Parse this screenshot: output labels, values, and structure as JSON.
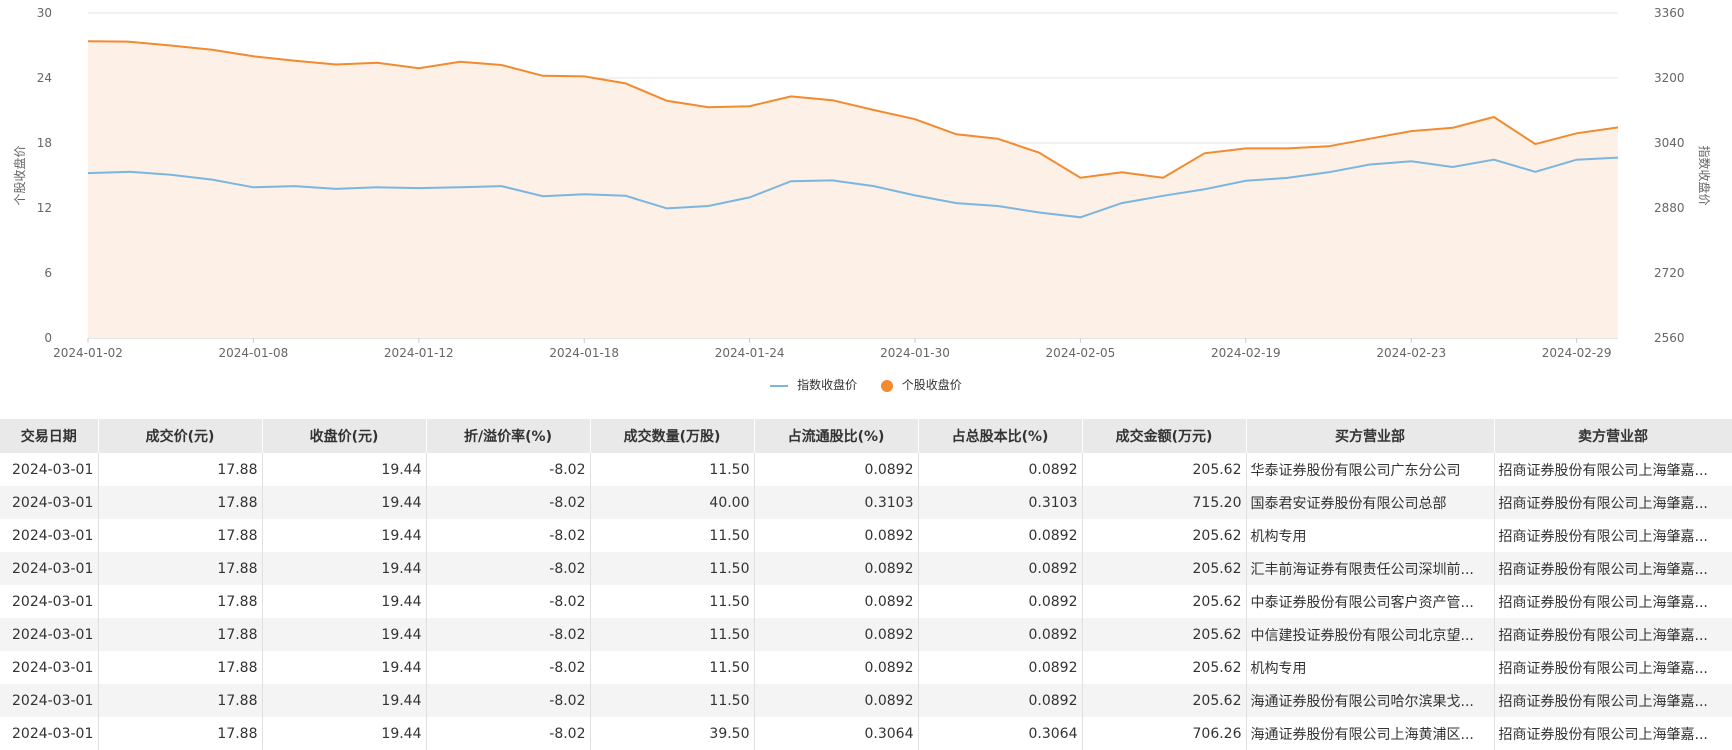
{
  "chart_data": {
    "type": "line",
    "x": [
      "2024-01-02",
      "2024-01-03",
      "2024-01-04",
      "2024-01-05",
      "2024-01-08",
      "2024-01-09",
      "2024-01-10",
      "2024-01-11",
      "2024-01-12",
      "2024-01-15",
      "2024-01-16",
      "2024-01-17",
      "2024-01-18",
      "2024-01-19",
      "2024-01-22",
      "2024-01-23",
      "2024-01-24",
      "2024-01-25",
      "2024-01-26",
      "2024-01-29",
      "2024-01-30",
      "2024-01-31",
      "2024-02-01",
      "2024-02-02",
      "2024-02-05",
      "2024-02-06",
      "2024-02-07",
      "2024-02-08",
      "2024-02-19",
      "2024-02-20",
      "2024-02-21",
      "2024-02-22",
      "2024-02-23",
      "2024-02-26",
      "2024-02-27",
      "2024-02-28",
      "2024-02-29",
      "2024-03-01"
    ],
    "x_tick_labels": [
      "2024-01-02",
      "2024-01-08",
      "2024-01-12",
      "2024-01-18",
      "2024-01-24",
      "2024-01-30",
      "2024-02-05",
      "2024-02-19",
      "2024-02-23",
      "2024-02-29"
    ],
    "left_axis": {
      "label": "个股收盘价",
      "range": [
        0,
        30
      ],
      "ticks": [
        "0",
        "6",
        "12",
        "18",
        "24",
        "30"
      ]
    },
    "right_axis": {
      "label": "指数收盘价",
      "range": [
        2560,
        3360
      ],
      "ticks": [
        "2560",
        "2720",
        "2880",
        "3040",
        "3200",
        "3360"
      ]
    },
    "series": [
      {
        "name": "指数收盘价",
        "axis": "right",
        "color": "#7ab6e0",
        "values": [
          2966,
          2969,
          2962,
          2950,
          2931,
          2934,
          2927,
          2931,
          2929,
          2931,
          2934,
          2909,
          2914,
          2910,
          2879,
          2885,
          2906,
          2946,
          2948,
          2934,
          2911,
          2892,
          2885,
          2869,
          2857,
          2892,
          2910,
          2926,
          2947,
          2954,
          2968,
          2987,
          2995,
          2981,
          2999,
          2969,
          2999,
          3004
        ]
      },
      {
        "name": "个股收盘价",
        "axis": "left",
        "color": "#f28a2e",
        "values": [
          27.4,
          27.35,
          27.0,
          26.6,
          26.0,
          25.6,
          25.25,
          25.4,
          24.9,
          25.5,
          25.2,
          24.2,
          24.15,
          23.5,
          21.9,
          21.3,
          21.4,
          22.3,
          21.95,
          21.05,
          20.2,
          18.8,
          18.4,
          17.1,
          14.8,
          15.3,
          14.8,
          17.05,
          17.5,
          17.5,
          17.7,
          18.4,
          19.1,
          19.4,
          20.4,
          17.9,
          18.9,
          19.44
        ]
      }
    ],
    "legend_position": "bottom-center",
    "grid": true
  },
  "legend": {
    "index_label": "指数收盘价",
    "stock_label": "个股收盘价"
  },
  "colors": {
    "index_line": "#7ab6e0",
    "stock_line": "#f28a2e",
    "stock_area": "#fdf0e6",
    "header_bg": "#e9e9e9",
    "stripe_bg": "#f4f4f4"
  },
  "table": {
    "headers": [
      "交易日期",
      "成交价(元)",
      "收盘价(元)",
      "折/溢价率(%)",
      "成交数量(万股)",
      "占流通股比(%)",
      "占总股本比(%)",
      "成交金额(万元)",
      "买方营业部",
      "卖方营业部"
    ],
    "rows": [
      [
        "2024-03-01",
        "17.88",
        "19.44",
        "-8.02",
        "11.50",
        "0.0892",
        "0.0892",
        "205.62",
        "华泰证券股份有限公司广东分公司",
        "招商证券股份有限公司上海肇嘉..."
      ],
      [
        "2024-03-01",
        "17.88",
        "19.44",
        "-8.02",
        "40.00",
        "0.3103",
        "0.3103",
        "715.20",
        "国泰君安证券股份有限公司总部",
        "招商证券股份有限公司上海肇嘉..."
      ],
      [
        "2024-03-01",
        "17.88",
        "19.44",
        "-8.02",
        "11.50",
        "0.0892",
        "0.0892",
        "205.62",
        "机构专用",
        "招商证券股份有限公司上海肇嘉..."
      ],
      [
        "2024-03-01",
        "17.88",
        "19.44",
        "-8.02",
        "11.50",
        "0.0892",
        "0.0892",
        "205.62",
        "汇丰前海证券有限责任公司深圳前...",
        "招商证券股份有限公司上海肇嘉..."
      ],
      [
        "2024-03-01",
        "17.88",
        "19.44",
        "-8.02",
        "11.50",
        "0.0892",
        "0.0892",
        "205.62",
        "中泰证券股份有限公司客户资产管...",
        "招商证券股份有限公司上海肇嘉..."
      ],
      [
        "2024-03-01",
        "17.88",
        "19.44",
        "-8.02",
        "11.50",
        "0.0892",
        "0.0892",
        "205.62",
        "中信建投证券股份有限公司北京望...",
        "招商证券股份有限公司上海肇嘉..."
      ],
      [
        "2024-03-01",
        "17.88",
        "19.44",
        "-8.02",
        "11.50",
        "0.0892",
        "0.0892",
        "205.62",
        "机构专用",
        "招商证券股份有限公司上海肇嘉..."
      ],
      [
        "2024-03-01",
        "17.88",
        "19.44",
        "-8.02",
        "11.50",
        "0.0892",
        "0.0892",
        "205.62",
        "海通证券股份有限公司哈尔滨果戈...",
        "招商证券股份有限公司上海肇嘉..."
      ],
      [
        "2024-03-01",
        "17.88",
        "19.44",
        "-8.02",
        "39.50",
        "0.3064",
        "0.3064",
        "706.26",
        "海通证券股份有限公司上海黄浦区...",
        "招商证券股份有限公司上海肇嘉..."
      ]
    ]
  }
}
